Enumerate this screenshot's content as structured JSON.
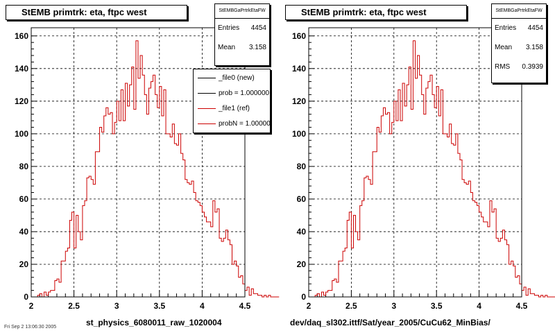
{
  "chart_data": [
    {
      "type": "histogram",
      "title": "StEMB primtrk: eta, ftpc west",
      "xlabel": "st_physics_6080011_raw_1020004",
      "xlim": [
        2,
        4.5
      ],
      "ylim": [
        0,
        165
      ],
      "x_ticks": [
        "2",
        "2.5",
        "3",
        "3.5",
        "4",
        "4.5"
      ],
      "y_ticks": [
        "0",
        "20",
        "40",
        "60",
        "80",
        "100",
        "120",
        "140",
        "160"
      ],
      "grid": true,
      "bin_start": 2.0,
      "bin_width": 0.025,
      "series": [
        {
          "name": "_file1 (ref)",
          "color": "#cc0000",
          "values": [
            0,
            0,
            0,
            1,
            2,
            0,
            3,
            1,
            3,
            4,
            4,
            10,
            11,
            9,
            22,
            22,
            28,
            30,
            47,
            52,
            30,
            50,
            40,
            35,
            56,
            59,
            73,
            74,
            72,
            69,
            89,
            89,
            104,
            101,
            111,
            116,
            112,
            113,
            100,
            107,
            120,
            108,
            127,
            108,
            131,
            117,
            130,
            141,
            115,
            157,
            134,
            148,
            136,
            124,
            112,
            128,
            132,
            136,
            124,
            116,
            129,
            111,
            127,
            100,
            100,
            98,
            106,
            94,
            93,
            100,
            88,
            84,
            72,
            70,
            69,
            71,
            64,
            59,
            58,
            56,
            52,
            49,
            46,
            46,
            43,
            59,
            52,
            54,
            36,
            34,
            36,
            41,
            35,
            32,
            20,
            22,
            19,
            12,
            13,
            8,
            4,
            6,
            1,
            5,
            2,
            2,
            1,
            1,
            0,
            1,
            0,
            1,
            0,
            0,
            0,
            0
          ]
        }
      ],
      "stats": {
        "name": "StEMBGaPrtrkEtaFW",
        "entries_label": "Entries",
        "entries": "4454",
        "mean_label": "Mean",
        "mean": "3.158"
      },
      "legend": [
        {
          "label": "_file0 (new)",
          "color": "#000000"
        },
        {
          "label": "prob = 1.000000",
          "color": "#000000"
        },
        {
          "label": "_file1 (ref)",
          "color": "#cc0000"
        },
        {
          "label": "probN = 1.000000",
          "color": "#cc0000"
        }
      ]
    },
    {
      "type": "histogram",
      "title": "StEMB primtrk: eta, ftpc west",
      "xlabel": "dev/daq_sl302.ittf/Sat/year_2005/CuCu62_MinBias/",
      "xlim": [
        2,
        4.5
      ],
      "ylim": [
        0,
        165
      ],
      "x_ticks": [
        "2",
        "2.5",
        "3",
        "3.5",
        "4",
        "4.5"
      ],
      "y_ticks": [
        "0",
        "20",
        "40",
        "60",
        "80",
        "100",
        "120",
        "140",
        "160"
      ],
      "grid": true,
      "bin_start": 2.0,
      "bin_width": 0.025,
      "series": [
        {
          "name": "_file1 (ref)",
          "color": "#cc0000",
          "values": [
            0,
            0,
            0,
            1,
            2,
            0,
            3,
            1,
            3,
            4,
            4,
            10,
            11,
            9,
            22,
            22,
            28,
            30,
            47,
            52,
            30,
            50,
            40,
            35,
            56,
            59,
            73,
            74,
            72,
            69,
            89,
            89,
            104,
            101,
            111,
            116,
            112,
            113,
            100,
            107,
            120,
            108,
            127,
            108,
            131,
            117,
            130,
            141,
            115,
            157,
            134,
            148,
            136,
            124,
            112,
            128,
            132,
            136,
            124,
            116,
            129,
            111,
            127,
            100,
            100,
            98,
            106,
            94,
            93,
            100,
            88,
            84,
            72,
            70,
            69,
            71,
            64,
            59,
            58,
            56,
            52,
            49,
            46,
            46,
            43,
            59,
            52,
            54,
            36,
            34,
            36,
            41,
            35,
            32,
            20,
            22,
            19,
            12,
            13,
            8,
            4,
            6,
            1,
            5,
            2,
            2,
            1,
            1,
            0,
            1,
            0,
            1,
            0,
            0,
            0,
            0
          ]
        }
      ],
      "stats": {
        "name": "StEMBGaPrtrkEtaFW",
        "entries_label": "Entries",
        "entries": "4454",
        "mean_label": "Mean",
        "mean": "3.158",
        "rms_label": "RMS",
        "rms": "0.3939"
      }
    }
  ],
  "footer": "Fri Sep 2 13:06:30 2005"
}
